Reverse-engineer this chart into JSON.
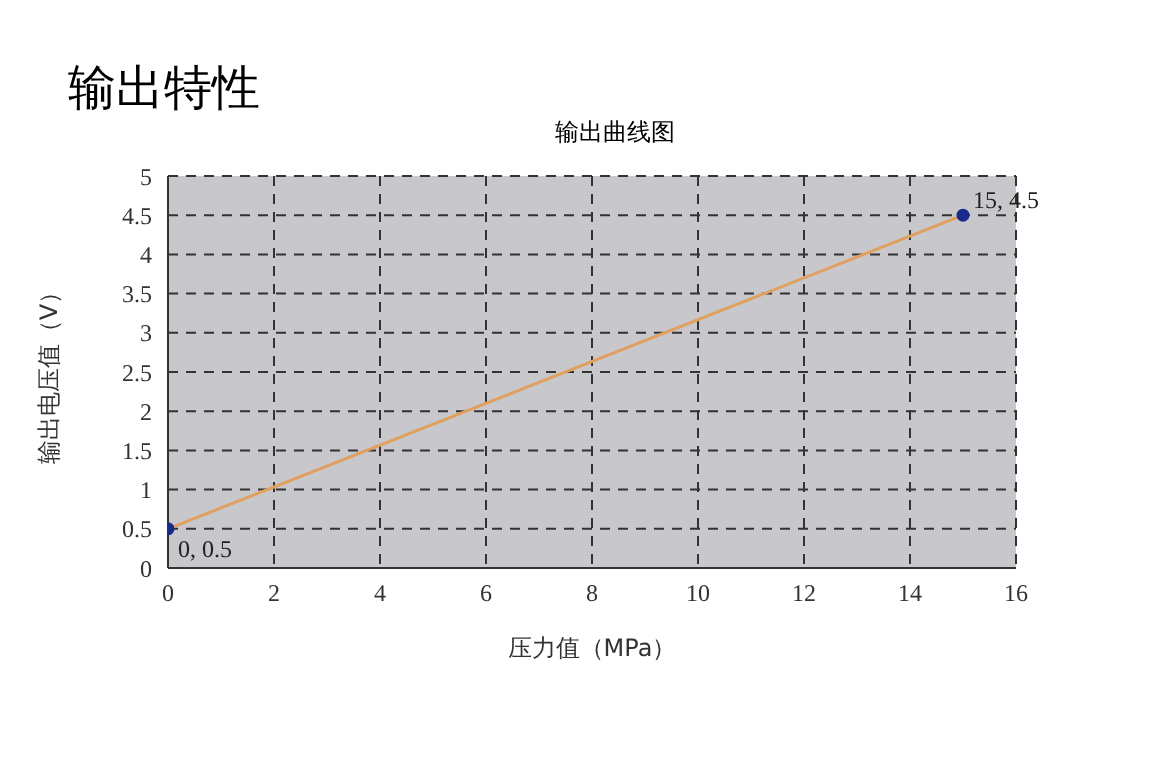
{
  "chart_data": {
    "type": "line",
    "title": "输出特性",
    "subtitle": "输出曲线图",
    "xlabel": "压力值（MPa）",
    "ylabel": "输出电压值（V）",
    "x": [
      0,
      15
    ],
    "series": [
      {
        "color": "#e0a060",
        "values": [
          0.5,
          4.5
        ]
      }
    ],
    "xlim": [
      0,
      16
    ],
    "xticks": [
      0,
      2,
      4,
      6,
      8,
      10,
      12,
      14,
      16
    ],
    "ylim": [
      0,
      5
    ],
    "yticks": [
      0,
      0.5,
      1,
      1.5,
      2,
      2.5,
      3,
      3.5,
      4,
      4.5,
      5
    ],
    "grid": true,
    "marker": "circle",
    "line_style": "solid",
    "annotations": [
      {
        "text": "0, 0.5",
        "x": 0,
        "y": 0.5
      },
      {
        "text": "15, 4.5",
        "x": 15,
        "y": 4.5
      }
    ]
  }
}
